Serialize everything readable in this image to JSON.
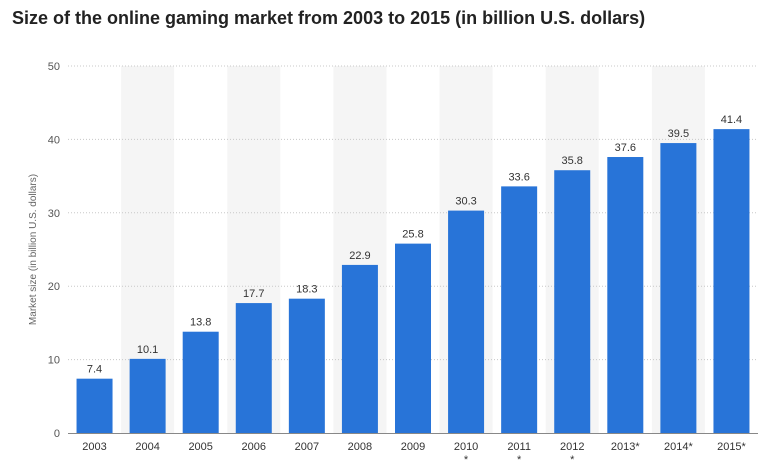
{
  "chart_data": {
    "type": "bar",
    "title": "Size of the online gaming market from 2003 to 2015 (in billion U.S. dollars)",
    "xlabel": "",
    "ylabel": "Market size (in billion U.S. dollars)",
    "ylim": [
      0,
      50
    ],
    "yticks": [
      0,
      10,
      20,
      30,
      40,
      50
    ],
    "categories": [
      "2003",
      "2004",
      "2005",
      "2006",
      "2007",
      "2008",
      "2009",
      "2010*",
      "2011*",
      "2012*",
      "2013*",
      "2014*",
      "2015*"
    ],
    "values": [
      7.4,
      10.1,
      13.8,
      17.7,
      18.3,
      22.9,
      25.8,
      30.3,
      33.6,
      35.8,
      37.6,
      39.5,
      41.4
    ],
    "value_labels": [
      "7.4",
      "10.1",
      "13.8",
      "17.7",
      "18.3",
      "22.9",
      "25.8",
      "30.3",
      "33.6",
      "35.8",
      "37.6",
      "39.5",
      "41.4"
    ],
    "grid": true,
    "legend": "none",
    "colors": {
      "bar": "#2874d8",
      "band": "#f5f5f5",
      "grid": "#c8c8c8",
      "axis": "#888888"
    }
  }
}
